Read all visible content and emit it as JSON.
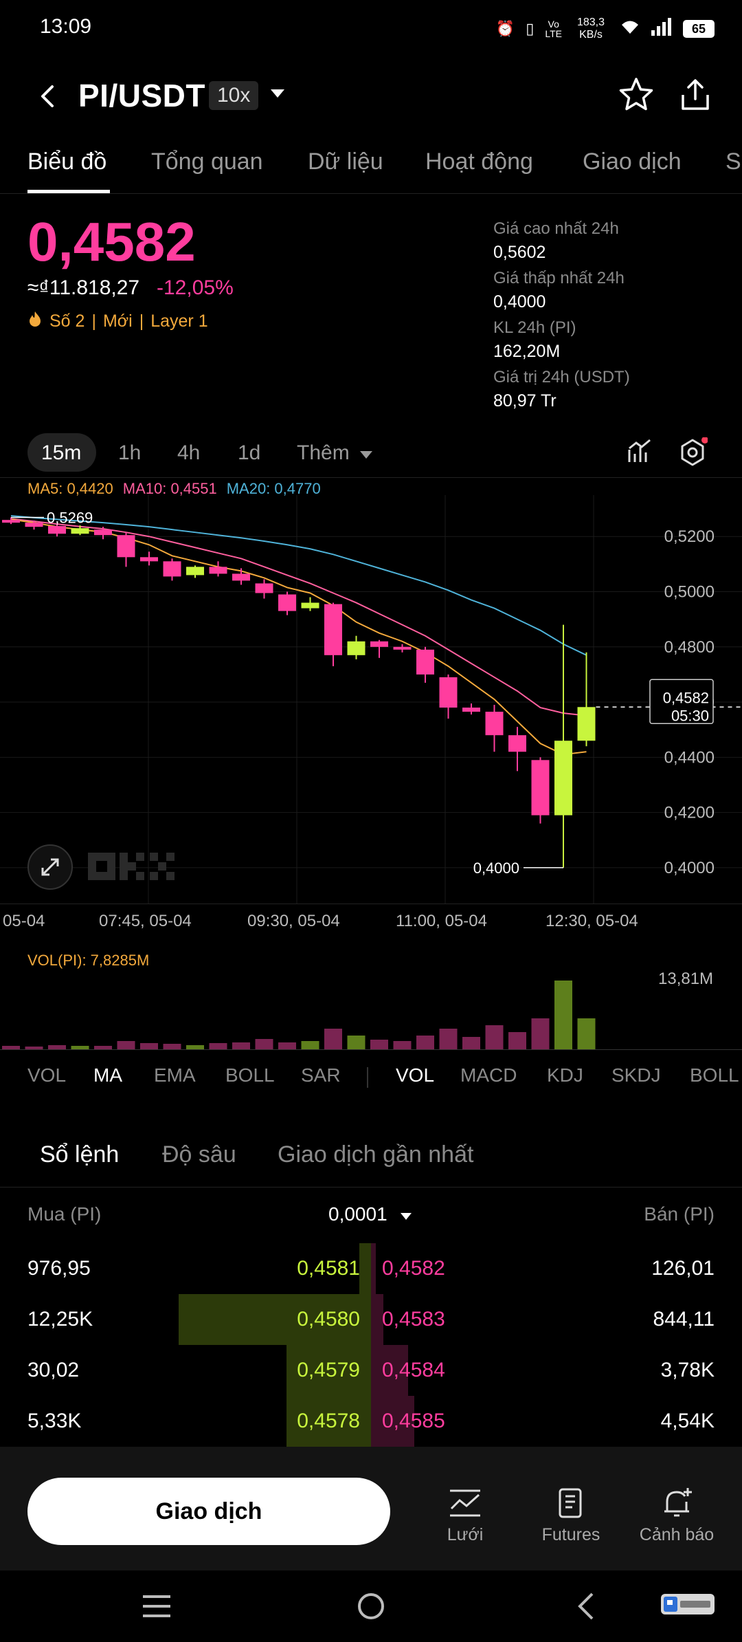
{
  "status_bar": {
    "time": "13:09",
    "speed": "183,3 KB/s",
    "battery": "65"
  },
  "header": {
    "pair": "PI/USDT",
    "leverage": "10x"
  },
  "tabs": [
    {
      "label": "Biểu đồ",
      "active": true
    },
    {
      "label": "Tổng quan"
    },
    {
      "label": "Dữ liệu"
    },
    {
      "label": "Hoạt động"
    },
    {
      "label": "Giao dịch"
    },
    {
      "label": "S"
    }
  ],
  "ticker": {
    "price": "0,4582",
    "converted": "≈₫11.818,27",
    "change": "-12,05%",
    "tags": [
      "Số 2",
      "Mới",
      "Layer 1"
    ]
  },
  "stats": [
    {
      "label": "Giá cao nhất 24h",
      "value": "0,5602"
    },
    {
      "label": "Giá thấp nhất 24h",
      "value": "0,4000"
    },
    {
      "label": "KL 24h (PI)",
      "value": "162,20M"
    },
    {
      "label": "Giá trị 24h (USDT)",
      "value": "80,97 Tr"
    }
  ],
  "timeframes": [
    "15m",
    "1h",
    "4h",
    "1d",
    "Thêm"
  ],
  "ma_legend": [
    {
      "label": "MA5: 0,4420",
      "color": "#f3a93c"
    },
    {
      "label": "MA10: 0,4551",
      "color": "#ff5f9e"
    },
    {
      "label": "MA20: 0,4770",
      "color": "#4fb3d9"
    }
  ],
  "chart_data": {
    "type": "candlestick",
    "y_ticks": [
      "0,5200",
      "0,5000",
      "0,4800",
      "0,4600",
      "0,4400",
      "0,4200",
      "0,4000"
    ],
    "ylim": [
      0.392,
      0.535
    ],
    "x_labels": [
      "05-04",
      "07:45, 05-04",
      "09:30, 05-04",
      "11:00, 05-04",
      "12:30, 05-04"
    ],
    "high_label": "0,5269",
    "low_label": "0,4000",
    "current_price": "0,4582",
    "countdown": "05:30",
    "candles": [
      {
        "o": 0.526,
        "h": 0.5269,
        "l": 0.5245,
        "c": 0.525
      },
      {
        "o": 0.525,
        "h": 0.5258,
        "l": 0.5225,
        "c": 0.5235
      },
      {
        "o": 0.5238,
        "h": 0.5245,
        "l": 0.52,
        "c": 0.521
      },
      {
        "o": 0.521,
        "h": 0.524,
        "l": 0.5205,
        "c": 0.523
      },
      {
        "o": 0.5225,
        "h": 0.5235,
        "l": 0.519,
        "c": 0.5205
      },
      {
        "o": 0.5205,
        "h": 0.5215,
        "l": 0.509,
        "c": 0.5125
      },
      {
        "o": 0.5125,
        "h": 0.5145,
        "l": 0.5095,
        "c": 0.511
      },
      {
        "o": 0.511,
        "h": 0.512,
        "l": 0.504,
        "c": 0.5055
      },
      {
        "o": 0.506,
        "h": 0.5095,
        "l": 0.505,
        "c": 0.509
      },
      {
        "o": 0.509,
        "h": 0.511,
        "l": 0.5055,
        "c": 0.5065
      },
      {
        "o": 0.5065,
        "h": 0.5085,
        "l": 0.5025,
        "c": 0.504
      },
      {
        "o": 0.503,
        "h": 0.5045,
        "l": 0.4975,
        "c": 0.4995
      },
      {
        "o": 0.499,
        "h": 0.5,
        "l": 0.4915,
        "c": 0.493
      },
      {
        "o": 0.494,
        "h": 0.498,
        "l": 0.493,
        "c": 0.496
      },
      {
        "o": 0.4955,
        "h": 0.496,
        "l": 0.473,
        "c": 0.477
      },
      {
        "o": 0.477,
        "h": 0.484,
        "l": 0.4755,
        "c": 0.482
      },
      {
        "o": 0.482,
        "h": 0.4825,
        "l": 0.476,
        "c": 0.48
      },
      {
        "o": 0.48,
        "h": 0.481,
        "l": 0.478,
        "c": 0.479
      },
      {
        "o": 0.479,
        "h": 0.48,
        "l": 0.467,
        "c": 0.47
      },
      {
        "o": 0.469,
        "h": 0.47,
        "l": 0.454,
        "c": 0.458
      },
      {
        "o": 0.458,
        "h": 0.4595,
        "l": 0.4555,
        "c": 0.4565
      },
      {
        "o": 0.4565,
        "h": 0.459,
        "l": 0.442,
        "c": 0.448
      },
      {
        "o": 0.448,
        "h": 0.451,
        "l": 0.435,
        "c": 0.442
      },
      {
        "o": 0.439,
        "h": 0.44,
        "l": 0.416,
        "c": 0.419
      },
      {
        "o": 0.419,
        "h": 0.488,
        "l": 0.4,
        "c": 0.446
      },
      {
        "o": 0.446,
        "h": 0.478,
        "l": 0.444,
        "c": 0.4582
      }
    ],
    "ma5": [
      0.5262,
      0.525,
      0.5235,
      0.5225,
      0.5216,
      0.5195,
      0.517,
      0.513,
      0.511,
      0.509,
      0.5075,
      0.505,
      0.5015,
      0.4995,
      0.495,
      0.489,
      0.485,
      0.482,
      0.478,
      0.473,
      0.467,
      0.461,
      0.453,
      0.445,
      0.441,
      0.442
    ],
    "ma10": [
      0.5264,
      0.5255,
      0.5245,
      0.5236,
      0.5228,
      0.5215,
      0.52,
      0.518,
      0.516,
      0.514,
      0.512,
      0.509,
      0.506,
      0.503,
      0.4995,
      0.496,
      0.492,
      0.488,
      0.484,
      0.479,
      0.474,
      0.469,
      0.464,
      0.458,
      0.456,
      0.4551
    ],
    "ma20": [
      0.5275,
      0.5268,
      0.5262,
      0.5256,
      0.525,
      0.5243,
      0.5235,
      0.5225,
      0.5215,
      0.5205,
      0.5195,
      0.5183,
      0.517,
      0.5155,
      0.5135,
      0.511,
      0.5085,
      0.506,
      0.5035,
      0.5005,
      0.497,
      0.494,
      0.49,
      0.486,
      0.481,
      0.477
    ],
    "volumes": [
      0.05,
      0.04,
      0.06,
      0.05,
      0.05,
      0.12,
      0.09,
      0.08,
      0.06,
      0.09,
      0.1,
      0.15,
      0.1,
      0.12,
      0.3,
      0.2,
      0.14,
      0.12,
      0.2,
      0.3,
      0.18,
      0.35,
      0.25,
      0.45,
      1.0,
      0.45
    ],
    "volume_axis_max": "13,81M"
  },
  "volume_label": "VOL(PI): 7,8285M",
  "indicators_main": [
    "VOL",
    "MA",
    "EMA",
    "BOLL",
    "SAR"
  ],
  "indicators_sub": [
    "VOL",
    "MACD",
    "KDJ",
    "SKDJ",
    "BOLL"
  ],
  "orderbook": {
    "tabs": [
      "Sổ lệnh",
      "Độ sâu",
      "Giao dịch gần nhất"
    ],
    "buy_header": "Mua (PI)",
    "sell_header": "Bán (PI)",
    "precision": "0,0001",
    "rows": [
      {
        "bid_qty": "976,95",
        "bid_price": "0,4581",
        "ask_price": "0,4582",
        "ask_qty": "126,01",
        "bid_depth": 0.06,
        "ask_depth": 0.02
      },
      {
        "bid_qty": "12,25K",
        "bid_price": "0,4580",
        "ask_price": "0,4583",
        "ask_qty": "844,11",
        "bid_depth": 1.0,
        "ask_depth": 0.1
      },
      {
        "bid_qty": "30,02",
        "bid_price": "0,4579",
        "ask_price": "0,4584",
        "ask_qty": "3,78K",
        "bid_depth": 0.44,
        "ask_depth": 0.36
      },
      {
        "bid_qty": "5,33K",
        "bid_price": "0,4578",
        "ask_price": "0,4585",
        "ask_qty": "4,54K",
        "bid_depth": 0.44,
        "ask_depth": 0.42
      }
    ]
  },
  "bottom_bar": {
    "trade_button": "Giao dịch",
    "nav": [
      "Lưới",
      "Futures",
      "Cảnh báo"
    ]
  },
  "colors": {
    "up": "#c8f53d",
    "down": "#ff3d9e",
    "accent_orange": "#f3a93c"
  }
}
